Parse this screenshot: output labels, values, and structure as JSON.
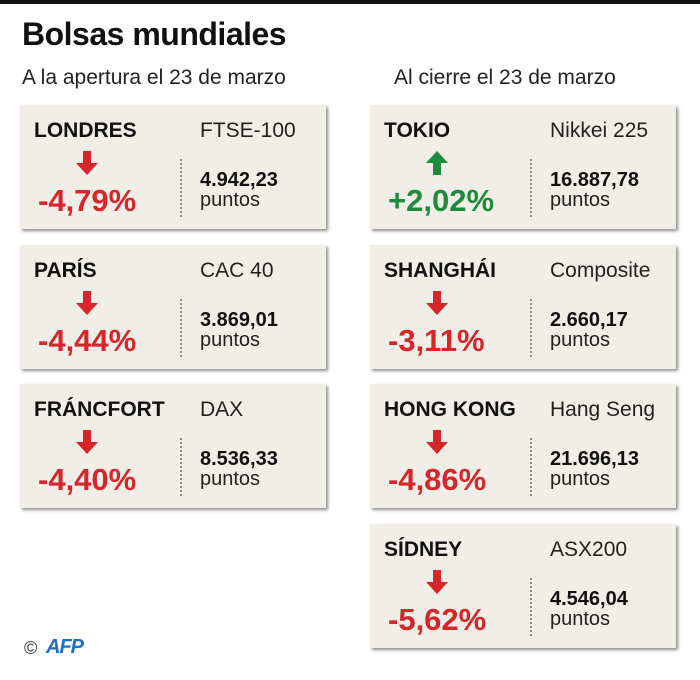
{
  "title": "Bolsas mundiales",
  "subtitles": {
    "left": "A la apertura el 23 de marzo",
    "right": "Al cierre el 23 de marzo"
  },
  "colors": {
    "down": "#d7262b",
    "up": "#1e8a3c",
    "card": "#f1eee8"
  },
  "credit": {
    "symbol": "©",
    "logo": "AFP"
  },
  "chart_data": {
    "type": "table",
    "title": "Bolsas mundiales",
    "columns": [
      "city",
      "index",
      "change_pct",
      "points"
    ],
    "unit_label": "puntos",
    "rows": [
      {
        "city": "LONDRES",
        "index": "FTSE-100",
        "change": "-4,79%",
        "change_pct": -4.79,
        "points": "4.942,23",
        "direction": "down",
        "group": "left"
      },
      {
        "city": "PARÍS",
        "index": "CAC 40",
        "change": "-4,44%",
        "change_pct": -4.44,
        "points": "3.869,01",
        "direction": "down",
        "group": "left"
      },
      {
        "city": "FRÁNCFORT",
        "index": "DAX",
        "change": "-4,40%",
        "change_pct": -4.4,
        "points": "8.536,33",
        "direction": "down",
        "group": "left"
      },
      {
        "city": "TOKIO",
        "index": "Nikkei 225",
        "change": "+2,02%",
        "change_pct": 2.02,
        "points": "16.887,78",
        "direction": "up",
        "group": "right"
      },
      {
        "city": "SHANGHÁI",
        "index": "Composite",
        "change": "-3,11%",
        "change_pct": -3.11,
        "points": "2.660,17",
        "direction": "down",
        "group": "right"
      },
      {
        "city": "HONG KONG",
        "index": "Hang Seng",
        "change": "-4,86%",
        "change_pct": -4.86,
        "points": "21.696,13",
        "direction": "down",
        "group": "right"
      },
      {
        "city": "SÍDNEY",
        "index": "ASX200",
        "change": "-5,62%",
        "change_pct": -5.62,
        "points": "4.546,04",
        "direction": "down",
        "group": "right"
      }
    ]
  }
}
